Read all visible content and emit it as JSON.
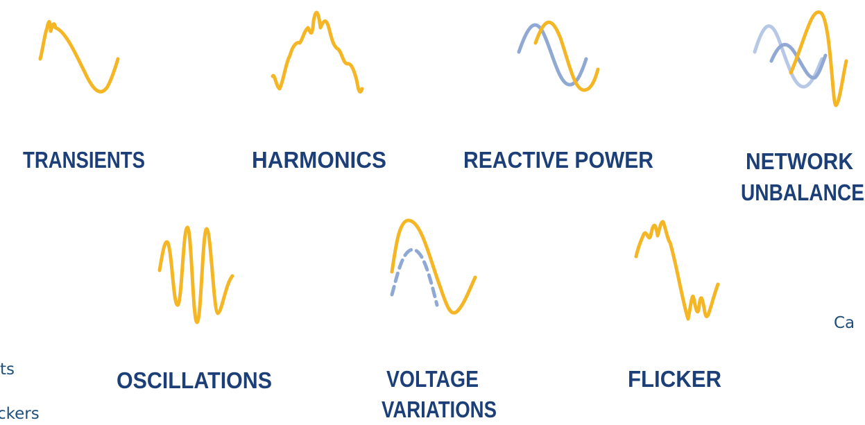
{
  "labels": [
    {
      "lines": [
        "TRANSIENTS"
      ]
    },
    {
      "lines": [
        "HARMONICS"
      ]
    },
    {
      "lines": [
        "REACTIVE POWER"
      ]
    },
    {
      "lines": [
        "NETWORK",
        "UNBALANCE"
      ]
    },
    {
      "lines": [
        "OSCILLATIONS"
      ]
    },
    {
      "lines": [
        "VOLTAGE",
        "VARIATIONS"
      ]
    },
    {
      "lines": [
        "FLICKER"
      ]
    }
  ],
  "fragments": [
    "Ca",
    "ts",
    "ckers"
  ]
}
